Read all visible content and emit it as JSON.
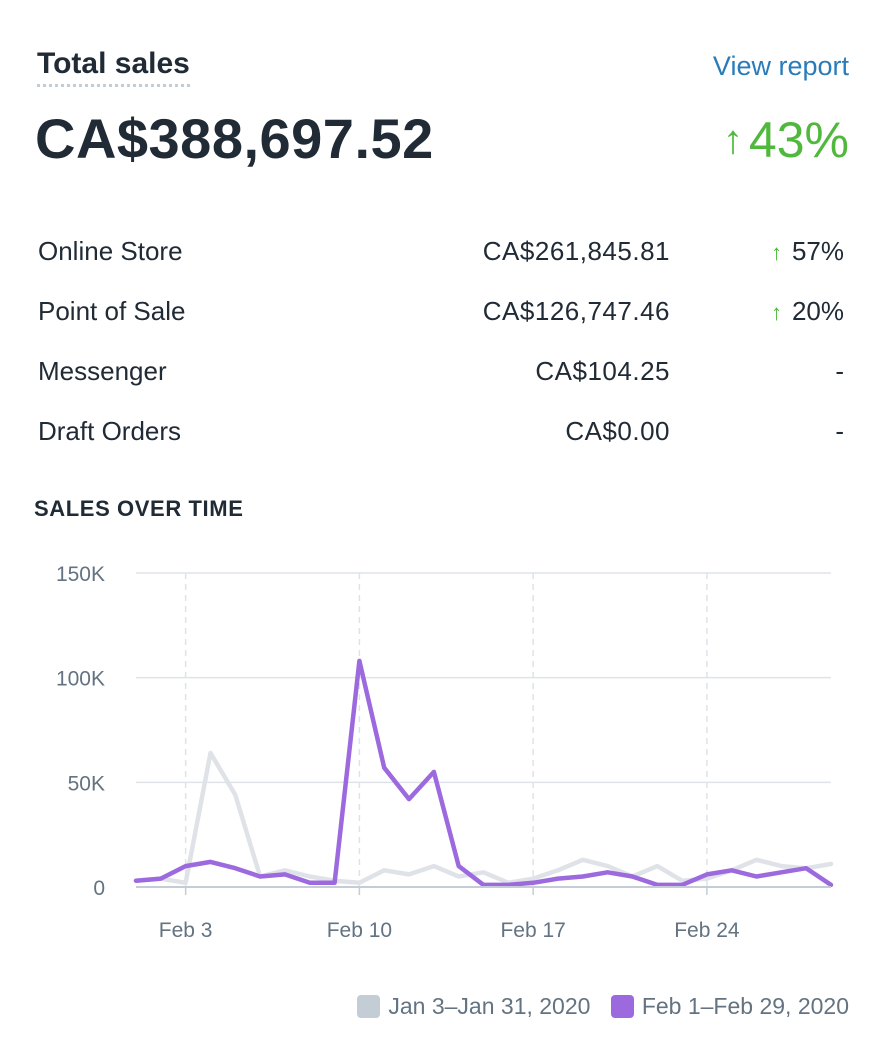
{
  "header": {
    "title": "Total sales",
    "view_report": "View report",
    "total": "CA$388,697.52",
    "change_arrow": "↑",
    "change": "43%"
  },
  "breakdown": [
    {
      "name": "Online Store",
      "amount": "CA$261,845.81",
      "arrow": "↑",
      "change": "57%"
    },
    {
      "name": "Point of Sale",
      "amount": "CA$126,747.46",
      "arrow": "↑",
      "change": "20%"
    },
    {
      "name": "Messenger",
      "amount": "CA$104.25",
      "arrow": "",
      "change": "-"
    },
    {
      "name": "Draft Orders",
      "amount": "CA$0.00",
      "arrow": "",
      "change": "-"
    }
  ],
  "section_title": "SALES OVER TIME",
  "colors": {
    "current": "#9c6ade",
    "previous": "#dfe3e8",
    "previous_swatch": "#c4cdd5",
    "positive": "#50b83c",
    "link": "#2a7bba"
  },
  "chart_data": {
    "type": "line",
    "title": "SALES OVER TIME",
    "xlabel": "",
    "ylabel": "",
    "x": [
      1,
      2,
      3,
      4,
      5,
      6,
      7,
      8,
      9,
      10,
      11,
      12,
      13,
      14,
      15,
      16,
      17,
      18,
      19,
      20,
      21,
      22,
      23,
      24,
      25,
      26,
      27,
      28,
      29
    ],
    "xlim": [
      1,
      29
    ],
    "xticks": [
      3,
      10,
      17,
      24
    ],
    "xtick_labels": [
      "Feb 3",
      "Feb 10",
      "Feb 17",
      "Feb 24"
    ],
    "ylim": [
      0,
      150000
    ],
    "yticks": [
      0,
      50000,
      100000,
      150000
    ],
    "ytick_labels": [
      "0",
      "50K",
      "100K",
      "150K"
    ],
    "grid": true,
    "legend": "bottom-right",
    "series": [
      {
        "name": "Jan 3–Jan 31, 2020",
        "values": [
          3000,
          4000,
          2000,
          64000,
          44000,
          5000,
          8000,
          5000,
          3000,
          2000,
          8000,
          6000,
          10000,
          5000,
          7000,
          2000,
          4000,
          8000,
          13000,
          10000,
          5000,
          10000,
          3000,
          4000,
          8000,
          13000,
          10000,
          9000,
          11000
        ]
      },
      {
        "name": "Feb 1–Feb 29, 2020",
        "values": [
          3000,
          4000,
          10000,
          12000,
          9000,
          5000,
          6000,
          2000,
          2000,
          108000,
          57000,
          42000,
          55000,
          10000,
          1000,
          1000,
          2000,
          4000,
          5000,
          7000,
          5000,
          1000,
          1000,
          6000,
          8000,
          5000,
          7000,
          9000,
          1000
        ]
      }
    ]
  }
}
